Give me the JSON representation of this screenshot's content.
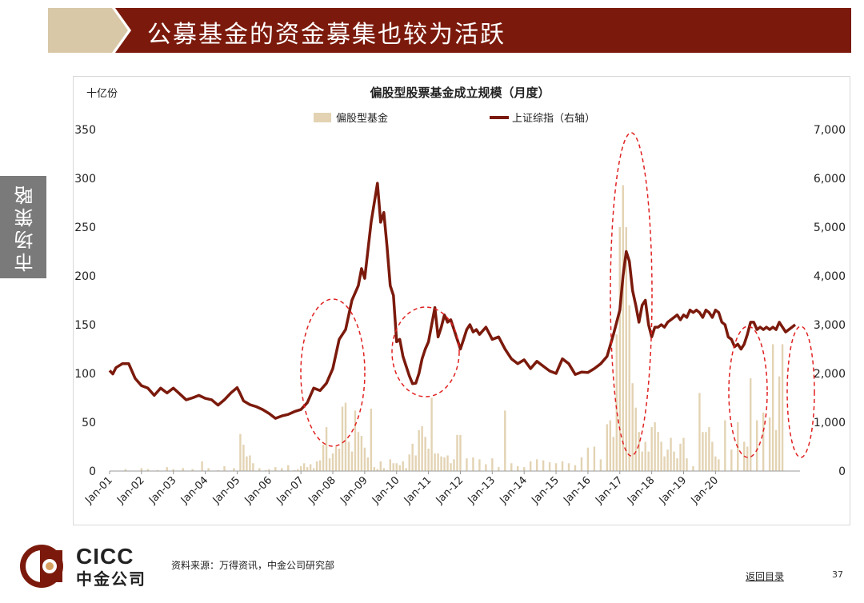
{
  "banner": {
    "title": "公募基金的资金募集也较为活跃"
  },
  "sidebar": {
    "tab_label": "市场策略"
  },
  "colors": {
    "banner_left": "#d8c8a8",
    "banner_main": "#7b1a0c",
    "bar": "#e3d3b3",
    "line": "#7b1a0c",
    "ellipse": "#e02020"
  },
  "chart_data": {
    "type": "bar",
    "title": "偏股型股票基金成立规模（月度）",
    "left_unit": "十亿份",
    "legend": [
      "偏股型基金",
      "上证综指（右轴）"
    ],
    "y_left": {
      "min": 0,
      "max": 350,
      "ticks": [
        "0",
        "50",
        "100",
        "150",
        "200",
        "250",
        "300",
        "350"
      ]
    },
    "y_right": {
      "min": 0,
      "max": 7000,
      "ticks": [
        "0",
        "1,000",
        "2,000",
        "3,000",
        "4,000",
        "5,000",
        "6,000",
        "7,000"
      ]
    },
    "x_ticks": [
      "Jan-01",
      "Jan-02",
      "Jan-03",
      "Jan-04",
      "Jan-05",
      "Jan-06",
      "Jan-07",
      "Jan-08",
      "Jan-09",
      "Jan-10",
      "Jan-11",
      "Jan-12",
      "Jan-13",
      "Jan-14",
      "Jan-15",
      "Jan-16",
      "Jan-17",
      "Jan-18",
      "Jan-19",
      "Jan-20"
    ],
    "series": [
      {
        "name": "偏股型基金",
        "type": "bar",
        "points": [
          [
            2001.0,
            0
          ],
          [
            2001.5,
            2
          ],
          [
            2002.0,
            3
          ],
          [
            2002.2,
            2
          ],
          [
            2002.5,
            1
          ],
          [
            2002.8,
            4
          ],
          [
            2003.0,
            2
          ],
          [
            2003.3,
            3
          ],
          [
            2003.6,
            2
          ],
          [
            2003.9,
            10
          ],
          [
            2004.1,
            3
          ],
          [
            2004.4,
            1
          ],
          [
            2004.6,
            5
          ],
          [
            2004.9,
            3
          ],
          [
            2005.1,
            38
          ],
          [
            2005.2,
            27
          ],
          [
            2005.3,
            15
          ],
          [
            2005.4,
            16
          ],
          [
            2005.5,
            8
          ],
          [
            2005.7,
            3
          ],
          [
            2005.9,
            1
          ],
          [
            2006.0,
            2
          ],
          [
            2006.2,
            4
          ],
          [
            2006.4,
            3
          ],
          [
            2006.6,
            6
          ],
          [
            2006.8,
            1
          ],
          [
            2006.9,
            2
          ],
          [
            2007.0,
            5
          ],
          [
            2007.1,
            8
          ],
          [
            2007.2,
            4
          ],
          [
            2007.3,
            7
          ],
          [
            2007.4,
            3
          ],
          [
            2007.5,
            10
          ],
          [
            2007.6,
            11
          ],
          [
            2007.7,
            27
          ],
          [
            2007.8,
            45
          ],
          [
            2007.9,
            13
          ],
          [
            2008.0,
            18
          ],
          [
            2008.1,
            25
          ],
          [
            2008.2,
            23
          ],
          [
            2008.3,
            66
          ],
          [
            2008.4,
            70
          ],
          [
            2008.5,
            30
          ],
          [
            2008.6,
            20
          ],
          [
            2008.7,
            62
          ],
          [
            2008.8,
            40
          ],
          [
            2008.9,
            36
          ],
          [
            2009.0,
            24
          ],
          [
            2009.1,
            14
          ],
          [
            2009.2,
            64
          ],
          [
            2009.3,
            4
          ],
          [
            2009.4,
            2
          ],
          [
            2009.5,
            10
          ],
          [
            2009.6,
            3
          ],
          [
            2009.7,
            1
          ],
          [
            2009.8,
            12
          ],
          [
            2009.9,
            8
          ],
          [
            2010.0,
            8
          ],
          [
            2010.1,
            6
          ],
          [
            2010.2,
            10
          ],
          [
            2010.3,
            3
          ],
          [
            2010.4,
            17
          ],
          [
            2010.5,
            28
          ],
          [
            2010.6,
            16
          ],
          [
            2010.7,
            42
          ],
          [
            2010.8,
            46
          ],
          [
            2010.9,
            35
          ],
          [
            2011.0,
            23
          ],
          [
            2011.1,
            75
          ],
          [
            2011.2,
            18
          ],
          [
            2011.3,
            18
          ],
          [
            2011.4,
            15
          ],
          [
            2011.5,
            14
          ],
          [
            2011.6,
            16
          ],
          [
            2011.7,
            8
          ],
          [
            2011.8,
            12
          ],
          [
            2011.9,
            37
          ],
          [
            2012.0,
            37
          ],
          [
            2012.2,
            13
          ],
          [
            2012.4,
            14
          ],
          [
            2012.6,
            12
          ],
          [
            2012.8,
            7
          ],
          [
            2013.0,
            13
          ],
          [
            2013.2,
            4
          ],
          [
            2013.4,
            62
          ],
          [
            2013.6,
            8
          ],
          [
            2013.8,
            5
          ],
          [
            2014.0,
            4
          ],
          [
            2014.2,
            10
          ],
          [
            2014.4,
            12
          ],
          [
            2014.6,
            11
          ],
          [
            2014.8,
            9
          ],
          [
            2015.0,
            8
          ],
          [
            2015.2,
            10
          ],
          [
            2015.4,
            8
          ],
          [
            2015.6,
            6
          ],
          [
            2015.8,
            14
          ],
          [
            2016.0,
            24
          ],
          [
            2016.2,
            25
          ],
          [
            2016.4,
            12
          ],
          [
            2016.6,
            48
          ],
          [
            2016.7,
            52
          ],
          [
            2016.8,
            35
          ],
          [
            2016.9,
            140
          ],
          [
            2017.0,
            250
          ],
          [
            2017.1,
            293
          ],
          [
            2017.2,
            250
          ],
          [
            2017.3,
            170
          ],
          [
            2017.4,
            90
          ],
          [
            2017.5,
            65
          ],
          [
            2017.6,
            40
          ],
          [
            2017.7,
            20
          ],
          [
            2017.8,
            30
          ],
          [
            2017.9,
            20
          ],
          [
            2018.0,
            45
          ],
          [
            2018.1,
            50
          ],
          [
            2018.2,
            40
          ],
          [
            2018.3,
            30
          ],
          [
            2018.4,
            15
          ],
          [
            2018.5,
            22
          ],
          [
            2018.6,
            34
          ],
          [
            2018.7,
            20
          ],
          [
            2018.8,
            13
          ],
          [
            2018.9,
            28
          ],
          [
            2019.0,
            34
          ],
          [
            2019.1,
            13
          ],
          [
            2019.3,
            5
          ],
          [
            2019.5,
            80
          ],
          [
            2019.6,
            40
          ],
          [
            2019.7,
            40
          ],
          [
            2019.8,
            45
          ],
          [
            2019.9,
            30
          ],
          [
            2020.0,
            15
          ],
          [
            2020.1,
            12
          ],
          [
            2020.3,
            52
          ],
          [
            2020.5,
            22
          ],
          [
            2020.7,
            50
          ],
          [
            2020.9,
            30
          ],
          [
            2021.0,
            25
          ],
          [
            2021.1,
            95
          ],
          [
            2021.3,
            52
          ],
          [
            2021.5,
            60
          ],
          [
            2021.7,
            55
          ],
          [
            2021.8,
            130
          ],
          [
            2021.9,
            42
          ],
          [
            2022.0,
            97
          ],
          [
            2022.1,
            130
          ]
        ]
      },
      {
        "name": "上证综指（右轴）",
        "type": "line",
        "axis": "right",
        "points": [
          [
            2001.0,
            2060
          ],
          [
            2001.1,
            1990
          ],
          [
            2001.2,
            2120
          ],
          [
            2001.4,
            2200
          ],
          [
            2001.6,
            2200
          ],
          [
            2001.8,
            1900
          ],
          [
            2002.0,
            1750
          ],
          [
            2002.2,
            1700
          ],
          [
            2002.4,
            1550
          ],
          [
            2002.6,
            1700
          ],
          [
            2002.8,
            1600
          ],
          [
            2003.0,
            1700
          ],
          [
            2003.2,
            1580
          ],
          [
            2003.4,
            1460
          ],
          [
            2003.6,
            1500
          ],
          [
            2003.8,
            1550
          ],
          [
            2004.0,
            1490
          ],
          [
            2004.2,
            1460
          ],
          [
            2004.4,
            1350
          ],
          [
            2004.6,
            1460
          ],
          [
            2004.8,
            1600
          ],
          [
            2005.0,
            1710
          ],
          [
            2005.1,
            1580
          ],
          [
            2005.2,
            1440
          ],
          [
            2005.4,
            1360
          ],
          [
            2005.6,
            1320
          ],
          [
            2005.8,
            1260
          ],
          [
            2006.0,
            1180
          ],
          [
            2006.2,
            1080
          ],
          [
            2006.4,
            1130
          ],
          [
            2006.6,
            1160
          ],
          [
            2006.8,
            1220
          ],
          [
            2007.0,
            1260
          ],
          [
            2007.2,
            1400
          ],
          [
            2007.4,
            1700
          ],
          [
            2007.6,
            1650
          ],
          [
            2007.8,
            1800
          ],
          [
            2008.0,
            2100
          ],
          [
            2008.2,
            2700
          ],
          [
            2008.4,
            2900
          ],
          [
            2008.6,
            3500
          ],
          [
            2008.8,
            3800
          ],
          [
            2008.9,
            4150
          ],
          [
            2009.0,
            3950
          ],
          [
            2009.2,
            5100
          ],
          [
            2009.4,
            5900
          ],
          [
            2009.5,
            5100
          ],
          [
            2009.6,
            5300
          ],
          [
            2009.7,
            4600
          ],
          [
            2009.8,
            3800
          ],
          [
            2009.9,
            3600
          ],
          [
            2010.0,
            2650
          ],
          [
            2010.1,
            2700
          ],
          [
            2010.2,
            2350
          ],
          [
            2010.3,
            2150
          ],
          [
            2010.4,
            1950
          ],
          [
            2010.5,
            1790
          ],
          [
            2010.6,
            1800
          ],
          [
            2010.7,
            2000
          ],
          [
            2010.8,
            2300
          ],
          [
            2010.9,
            2500
          ],
          [
            2011.0,
            2650
          ],
          [
            2011.1,
            3000
          ],
          [
            2011.2,
            3350
          ],
          [
            2011.3,
            2750
          ],
          [
            2011.4,
            2950
          ],
          [
            2011.5,
            3200
          ],
          [
            2011.6,
            3050
          ],
          [
            2011.7,
            3100
          ],
          [
            2011.8,
            2900
          ],
          [
            2011.9,
            2700
          ],
          [
            2012.0,
            2500
          ],
          [
            2012.1,
            2700
          ],
          [
            2012.2,
            2900
          ],
          [
            2012.3,
            3000
          ],
          [
            2012.4,
            2850
          ],
          [
            2012.5,
            2900
          ],
          [
            2012.6,
            2800
          ],
          [
            2012.8,
            2950
          ],
          [
            2013.0,
            2700
          ],
          [
            2013.2,
            2750
          ],
          [
            2013.4,
            2500
          ],
          [
            2013.6,
            2300
          ],
          [
            2013.8,
            2200
          ],
          [
            2014.0,
            2280
          ],
          [
            2014.2,
            2100
          ],
          [
            2014.4,
            2250
          ],
          [
            2014.6,
            2150
          ],
          [
            2014.8,
            2050
          ],
          [
            2015.0,
            2000
          ],
          [
            2015.2,
            2300
          ],
          [
            2015.4,
            2200
          ],
          [
            2015.6,
            1980
          ],
          [
            2015.8,
            2030
          ],
          [
            2016.0,
            2020
          ],
          [
            2016.2,
            2100
          ],
          [
            2016.4,
            2200
          ],
          [
            2016.6,
            2350
          ],
          [
            2016.8,
            2800
          ],
          [
            2017.0,
            3300
          ],
          [
            2017.1,
            4000
          ],
          [
            2017.2,
            4500
          ],
          [
            2017.3,
            4300
          ],
          [
            2017.4,
            3700
          ],
          [
            2017.5,
            3400
          ],
          [
            2017.6,
            3050
          ],
          [
            2017.7,
            3400
          ],
          [
            2017.8,
            3500
          ],
          [
            2017.9,
            3000
          ],
          [
            2018.0,
            2750
          ],
          [
            2018.1,
            2950
          ],
          [
            2018.2,
            2950
          ],
          [
            2018.3,
            3000
          ],
          [
            2018.4,
            2950
          ],
          [
            2018.5,
            3050
          ],
          [
            2018.6,
            3100
          ],
          [
            2018.7,
            3150
          ],
          [
            2018.8,
            3200
          ],
          [
            2018.9,
            3100
          ],
          [
            2019.0,
            3200
          ],
          [
            2019.1,
            3150
          ],
          [
            2019.2,
            3300
          ],
          [
            2019.3,
            3250
          ],
          [
            2019.4,
            3300
          ],
          [
            2019.5,
            3250
          ],
          [
            2019.6,
            3150
          ],
          [
            2019.7,
            3300
          ],
          [
            2019.8,
            3250
          ],
          [
            2019.9,
            3150
          ],
          [
            2020.0,
            3300
          ],
          [
            2020.1,
            3250
          ],
          [
            2020.2,
            3050
          ],
          [
            2020.3,
            3000
          ],
          [
            2020.4,
            2750
          ],
          [
            2020.5,
            2700
          ],
          [
            2020.6,
            2550
          ],
          [
            2020.7,
            2600
          ],
          [
            2020.8,
            2500
          ],
          [
            2020.9,
            2600
          ],
          [
            2021.0,
            2800
          ],
          [
            2021.1,
            3050
          ],
          [
            2021.2,
            3050
          ],
          [
            2021.3,
            2900
          ],
          [
            2021.4,
            2950
          ],
          [
            2021.5,
            2900
          ],
          [
            2021.6,
            2950
          ],
          [
            2021.7,
            2900
          ],
          [
            2021.8,
            2950
          ],
          [
            2021.9,
            2900
          ],
          [
            2022.0,
            3050
          ],
          [
            2022.1,
            2950
          ],
          [
            2022.2,
            2850
          ],
          [
            2022.3,
            2900
          ],
          [
            2022.4,
            2950
          ],
          [
            2022.5,
            3000
          ]
        ]
      }
    ],
    "highlight_ellipses": 5
  },
  "footer": {
    "source": "资料来源：万得资讯，中金公司研究部",
    "nav_link": "返回目录",
    "page_number": "37",
    "logo_en": "CICC",
    "logo_cn": "中金公司"
  }
}
